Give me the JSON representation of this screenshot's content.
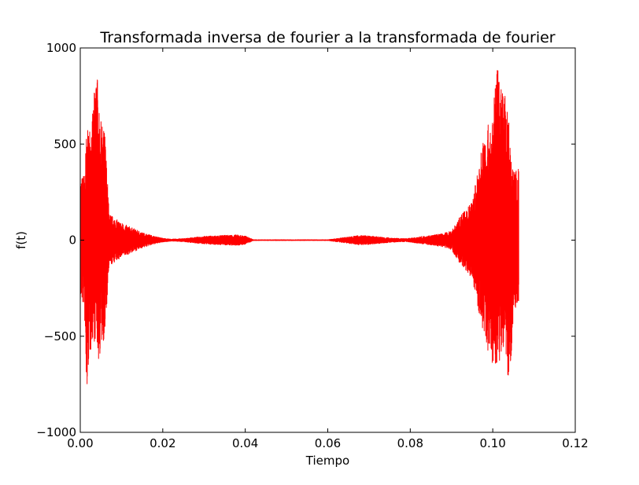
{
  "chart_data": {
    "type": "line",
    "title": "Transformada inversa de fourier a la transformada de fourier",
    "xlabel": "Tiempo",
    "ylabel": "f(t)",
    "xlim": [
      0.0,
      0.12
    ],
    "ylim": [
      -1000,
      1000
    ],
    "xticks": [
      0.0,
      0.02,
      0.04,
      0.06,
      0.08,
      0.1,
      0.12
    ],
    "xtick_labels": [
      "0.00",
      "0.02",
      "0.04",
      "0.06",
      "0.08",
      "0.10",
      "0.12"
    ],
    "yticks": [
      -1000,
      -500,
      0,
      500,
      1000
    ],
    "ytick_labels": [
      "−1000",
      "−500",
      "0",
      "500",
      "1000"
    ],
    "grid": false,
    "legend": "none",
    "series_color": "#ff0000",
    "series": [
      {
        "x": [
          0.0,
          0.001,
          0.0015,
          0.002,
          0.003,
          0.004,
          0.0045,
          0.005,
          0.006,
          0.007,
          0.008,
          0.01,
          0.012,
          0.015,
          0.018,
          0.02,
          0.022,
          0.025,
          0.028,
          0.03,
          0.032,
          0.035,
          0.038,
          0.04,
          0.042,
          0.05,
          0.06,
          0.066,
          0.068,
          0.07,
          0.072,
          0.075,
          0.078,
          0.08,
          0.083,
          0.085,
          0.088,
          0.09,
          0.092,
          0.095,
          0.098,
          0.1,
          0.101,
          0.102,
          0.103,
          0.104,
          0.105,
          0.106,
          0.1063
        ],
        "envelope_max": [
          320,
          350,
          560,
          580,
          660,
          940,
          670,
          620,
          560,
          140,
          120,
          90,
          70,
          40,
          20,
          10,
          5,
          8,
          15,
          20,
          22,
          25,
          28,
          22,
          2,
          2,
          2,
          20,
          25,
          22,
          18,
          12,
          8,
          10,
          20,
          25,
          35,
          50,
          120,
          200,
          570,
          640,
          930,
          830,
          750,
          600,
          360,
          380,
          380
        ],
        "envelope_min": [
          -320,
          -350,
          -860,
          -650,
          -520,
          -540,
          -650,
          -550,
          -510,
          -140,
          -120,
          -90,
          -70,
          -40,
          -20,
          -10,
          -5,
          -8,
          -15,
          -20,
          -22,
          -25,
          -28,
          -22,
          -2,
          -2,
          -2,
          -20,
          -25,
          -22,
          -18,
          -12,
          -8,
          -10,
          -20,
          -25,
          -35,
          -50,
          -120,
          -200,
          -530,
          -650,
          -640,
          -650,
          -520,
          -860,
          -380,
          -330,
          -330
        ]
      }
    ]
  }
}
